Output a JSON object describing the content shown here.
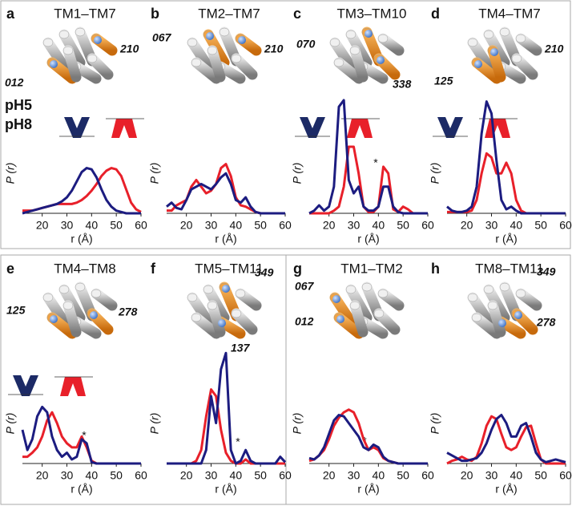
{
  "chart_data": [
    {
      "type": "line",
      "panel": "a",
      "title": "TM1–TM7",
      "annotations": [
        "012",
        "210"
      ],
      "xlabel": "r (Å)",
      "ylabel": "P (r)",
      "x": [
        12,
        14,
        16,
        18,
        20,
        22,
        24,
        26,
        28,
        30,
        32,
        34,
        36,
        38,
        40,
        42,
        44,
        46,
        48,
        50,
        52,
        54,
        56,
        58,
        60
      ],
      "xlim": [
        12,
        60
      ],
      "xticks": [
        20,
        30,
        40,
        50,
        60
      ],
      "ylim": [
        0,
        1
      ],
      "series": [
        {
          "name": "pH5",
          "color": "#e8202a",
          "values": [
            0.02,
            0.02,
            0.02,
            0.03,
            0.04,
            0.05,
            0.06,
            0.07,
            0.07,
            0.07,
            0.07,
            0.08,
            0.1,
            0.13,
            0.17,
            0.22,
            0.28,
            0.32,
            0.34,
            0.33,
            0.28,
            0.18,
            0.08,
            0.03,
            0.01
          ]
        },
        {
          "name": "pH8",
          "color": "#1c1c80",
          "values": [
            0,
            0.01,
            0.02,
            0.03,
            0.04,
            0.05,
            0.06,
            0.07,
            0.09,
            0.12,
            0.17,
            0.24,
            0.31,
            0.34,
            0.33,
            0.27,
            0.18,
            0.1,
            0.05,
            0.02,
            0.01,
            0,
            0,
            0,
            0
          ]
        }
      ]
    },
    {
      "type": "line",
      "panel": "b",
      "title": "TM2–TM7",
      "annotations": [
        "067",
        "210"
      ],
      "xlabel": "r (Å)",
      "ylabel": "P (r)",
      "x": [
        12,
        14,
        16,
        18,
        20,
        22,
        24,
        26,
        28,
        30,
        32,
        34,
        36,
        38,
        40,
        42,
        44,
        46,
        48,
        50,
        52,
        54,
        56,
        58,
        60
      ],
      "xlim": [
        12,
        60
      ],
      "xticks": [
        20,
        30,
        40,
        50,
        60
      ],
      "ylim": [
        0,
        1
      ],
      "series": [
        {
          "color": "#e8202a",
          "values": [
            0.02,
            0.02,
            0.06,
            0.08,
            0.1,
            0.2,
            0.25,
            0.2,
            0.15,
            0.17,
            0.22,
            0.34,
            0.37,
            0.28,
            0.12,
            0.06,
            0.05,
            0.03,
            0.01,
            0,
            0,
            0,
            0,
            0,
            0
          ]
        },
        {
          "color": "#1c1c80",
          "values": [
            0.05,
            0.08,
            0.04,
            0.03,
            0.1,
            0.18,
            0.2,
            0.22,
            0.2,
            0.18,
            0.22,
            0.27,
            0.3,
            0.22,
            0.1,
            0.08,
            0.12,
            0.05,
            0.01,
            0,
            0,
            0,
            0,
            0,
            0
          ]
        }
      ]
    },
    {
      "type": "line",
      "panel": "c",
      "title": "TM3–TM10",
      "annotations": [
        "070",
        "338",
        "*"
      ],
      "xlabel": "r (Å)",
      "ylabel": "P (r)",
      "x": [
        12,
        14,
        16,
        18,
        20,
        22,
        24,
        26,
        28,
        30,
        32,
        34,
        36,
        38,
        40,
        42,
        44,
        46,
        48,
        50,
        52,
        54,
        56,
        58,
        60
      ],
      "xlim": [
        12,
        60
      ],
      "xticks": [
        20,
        30,
        40,
        50,
        60
      ],
      "ylim": [
        0,
        1
      ],
      "series": [
        {
          "color": "#e8202a",
          "values": [
            0,
            0,
            0,
            0,
            0,
            0.02,
            0.05,
            0.2,
            0.5,
            0.5,
            0.3,
            0.05,
            0.01,
            0.01,
            0.05,
            0.35,
            0.3,
            0.03,
            0.01,
            0.05,
            0.03,
            0,
            0,
            0,
            0
          ]
        },
        {
          "color": "#1c1c80",
          "values": [
            0,
            0.02,
            0.06,
            0.02,
            0.05,
            0.2,
            0.8,
            0.85,
            0.25,
            0.15,
            0.2,
            0.05,
            0.02,
            0.02,
            0.05,
            0.2,
            0.2,
            0.05,
            0.01,
            0,
            0,
            0,
            0,
            0,
            0
          ]
        }
      ]
    },
    {
      "type": "line",
      "panel": "d",
      "title": "TM4–TM7",
      "annotations": [
        "210",
        "125"
      ],
      "xlabel": "r (Å)",
      "ylabel": "P (r)",
      "x": [
        12,
        14,
        16,
        18,
        20,
        22,
        24,
        26,
        28,
        30,
        32,
        34,
        36,
        38,
        40,
        42,
        44,
        46,
        48,
        50,
        52,
        54,
        56,
        58,
        60
      ],
      "xlim": [
        12,
        60
      ],
      "xticks": [
        20,
        30,
        40,
        50,
        60
      ],
      "ylim": [
        0,
        1
      ],
      "series": [
        {
          "color": "#e8202a",
          "values": [
            0.01,
            0.01,
            0.01,
            0.01,
            0.01,
            0.02,
            0.1,
            0.3,
            0.45,
            0.42,
            0.3,
            0.3,
            0.38,
            0.3,
            0.1,
            0.02,
            0,
            0,
            0,
            0,
            0,
            0,
            0,
            0,
            0
          ]
        },
        {
          "color": "#1c1c80",
          "values": [
            0.05,
            0.02,
            0.01,
            0.01,
            0.02,
            0.05,
            0.2,
            0.6,
            0.84,
            0.75,
            0.4,
            0.1,
            0.03,
            0.05,
            0.02,
            0,
            0,
            0,
            0,
            0,
            0,
            0,
            0,
            0,
            0
          ]
        }
      ]
    },
    {
      "type": "line",
      "panel": "e",
      "title": "TM4–TM8",
      "annotations": [
        "125",
        "278",
        "*"
      ],
      "xlabel": "r (Å)",
      "ylabel": "P (r)",
      "x": [
        12,
        14,
        16,
        18,
        20,
        22,
        24,
        26,
        28,
        30,
        32,
        34,
        36,
        38,
        40,
        42,
        44,
        46,
        48,
        50,
        52,
        54,
        56,
        58,
        60
      ],
      "xlim": [
        12,
        60
      ],
      "xticks": [
        20,
        30,
        40,
        50,
        60
      ],
      "ylim": [
        0,
        1
      ],
      "series": [
        {
          "color": "#e8202a",
          "values": [
            0.05,
            0.05,
            0.08,
            0.12,
            0.2,
            0.32,
            0.38,
            0.3,
            0.2,
            0.15,
            0.12,
            0.12,
            0.2,
            0.12,
            0.02,
            0,
            0,
            0,
            0,
            0,
            0,
            0,
            0,
            0,
            0
          ]
        },
        {
          "color": "#1c1c80",
          "values": [
            0.25,
            0.1,
            0.18,
            0.35,
            0.42,
            0.38,
            0.2,
            0.1,
            0.05,
            0.08,
            0.03,
            0.05,
            0.18,
            0.15,
            0.01,
            0,
            0,
            0,
            0,
            0,
            0,
            0,
            0,
            0,
            0
          ]
        }
      ]
    },
    {
      "type": "line",
      "panel": "f",
      "title": "TM5–TM11",
      "annotations": [
        "349",
        "137",
        "*"
      ],
      "xlabel": "r (Å)",
      "ylabel": "P (r)",
      "x": [
        12,
        14,
        16,
        18,
        20,
        22,
        24,
        26,
        28,
        30,
        32,
        34,
        36,
        38,
        40,
        42,
        44,
        46,
        48,
        50,
        52,
        54,
        56,
        58,
        60
      ],
      "xlim": [
        12,
        60
      ],
      "xticks": [
        20,
        30,
        40,
        50,
        60
      ],
      "ylim": [
        0,
        1
      ],
      "series": [
        {
          "color": "#e8202a",
          "values": [
            0,
            0,
            0,
            0,
            0,
            0,
            0.02,
            0.1,
            0.35,
            0.55,
            0.5,
            0.25,
            0.08,
            0.02,
            0,
            0,
            0.03,
            0,
            0,
            0,
            0,
            0,
            0,
            0,
            0
          ]
        },
        {
          "color": "#1c1c80",
          "values": [
            0,
            0,
            0,
            0,
            0,
            0,
            0,
            0,
            0.1,
            0.5,
            0.3,
            0.7,
            0.82,
            0.1,
            0,
            0.02,
            0.1,
            0.02,
            0,
            0,
            0,
            0,
            0,
            0.05,
            0.01
          ]
        }
      ]
    },
    {
      "type": "line",
      "panel": "g",
      "title": "TM1–TM2",
      "annotations": [
        "067",
        "012",
        "*"
      ],
      "xlabel": "r (Å)",
      "ylabel": "P (r)",
      "x": [
        12,
        14,
        16,
        18,
        20,
        22,
        24,
        26,
        28,
        30,
        32,
        34,
        36,
        38,
        40,
        42,
        44,
        46,
        48,
        50,
        52,
        54,
        56,
        58,
        60
      ],
      "xlim": [
        12,
        60
      ],
      "xticks": [
        20,
        30,
        40,
        50,
        60
      ],
      "ylim": [
        0,
        1
      ],
      "series": [
        {
          "color": "#e8202a",
          "values": [
            0.02,
            0.03,
            0.06,
            0.1,
            0.18,
            0.28,
            0.34,
            0.38,
            0.4,
            0.38,
            0.3,
            0.18,
            0.1,
            0.12,
            0.1,
            0.04,
            0.02,
            0.01,
            0,
            0,
            0,
            0,
            0,
            0,
            0
          ]
        },
        {
          "color": "#1c1c80",
          "values": [
            0.04,
            0.03,
            0.06,
            0.12,
            0.22,
            0.32,
            0.36,
            0.35,
            0.3,
            0.25,
            0.2,
            0.12,
            0.1,
            0.14,
            0.12,
            0.05,
            0.02,
            0.01,
            0,
            0,
            0,
            0,
            0,
            0,
            0
          ]
        }
      ]
    },
    {
      "type": "line",
      "panel": "h",
      "title": "TM8–TM11",
      "annotations": [
        "349",
        "278"
      ],
      "xlabel": "r (Å)",
      "ylabel": "P (r)",
      "x": [
        12,
        14,
        16,
        18,
        20,
        22,
        24,
        26,
        28,
        30,
        32,
        34,
        36,
        38,
        40,
        42,
        44,
        46,
        48,
        50,
        52,
        54,
        56,
        58,
        60
      ],
      "xlim": [
        12,
        60
      ],
      "xticks": [
        20,
        30,
        40,
        50,
        60
      ],
      "ylim": [
        0,
        1
      ],
      "series": [
        {
          "color": "#e8202a",
          "values": [
            0,
            0.02,
            0.03,
            0.05,
            0.03,
            0.02,
            0.05,
            0.15,
            0.28,
            0.35,
            0.33,
            0.22,
            0.12,
            0.1,
            0.12,
            0.2,
            0.27,
            0.28,
            0.15,
            0.03,
            0,
            0,
            0,
            0,
            0
          ]
        },
        {
          "color": "#1c1c80",
          "values": [
            0.08,
            0.06,
            0.04,
            0.02,
            0.02,
            0.03,
            0.04,
            0.08,
            0.15,
            0.25,
            0.33,
            0.36,
            0.3,
            0.2,
            0.2,
            0.28,
            0.3,
            0.2,
            0.08,
            0.03,
            0.01,
            0.02,
            0.03,
            0.02,
            0.01
          ]
        }
      ]
    }
  ]
}
